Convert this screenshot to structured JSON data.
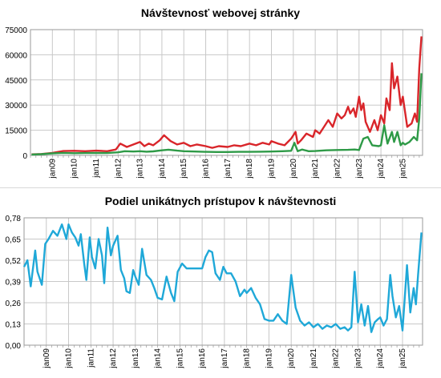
{
  "chart_data": [
    {
      "type": "line",
      "title": "Návštevnosť webovej stránky",
      "ylim": [
        0,
        75000
      ],
      "y_ticks": [
        "75000",
        "60000",
        "45000",
        "30000",
        "15000",
        "0"
      ],
      "x_ticks": [
        "jan09",
        "jan10",
        "jan11",
        "jan12",
        "jan13",
        "jan14",
        "jan15",
        "jan16",
        "jan17",
        "jan18",
        "jan19",
        "jan20",
        "jan21",
        "jan22",
        "jan23",
        "jan24",
        "jan25"
      ],
      "xlim": [
        2008.0,
        2025.9
      ],
      "grid": true,
      "series": [
        {
          "color": "#d9252a",
          "x": [
            2008.05,
            2008.5,
            2009.0,
            2009.5,
            2010.0,
            2010.5,
            2011.0,
            2011.5,
            2011.9,
            2012.1,
            2012.4,
            2012.7,
            2013.0,
            2013.2,
            2013.4,
            2013.6,
            2013.9,
            2014.1,
            2014.4,
            2014.7,
            2015.0,
            2015.3,
            2015.6,
            2016.0,
            2016.3,
            2016.6,
            2017.0,
            2017.3,
            2017.6,
            2018.0,
            2018.3,
            2018.6,
            2018.9,
            2019.0,
            2019.3,
            2019.6,
            2019.9,
            2020.1,
            2020.2,
            2020.35,
            2020.6,
            2020.9,
            2021.0,
            2021.2,
            2021.4,
            2021.6,
            2021.8,
            2022.0,
            2022.2,
            2022.35,
            2022.5,
            2022.6,
            2022.75,
            2022.85,
            2023.0,
            2023.1,
            2023.2,
            2023.3,
            2023.5,
            2023.7,
            2023.85,
            2024.0,
            2024.15,
            2024.25,
            2024.4,
            2024.5,
            2024.6,
            2024.75,
            2024.9,
            2025.0,
            2025.2,
            2025.4,
            2025.55,
            2025.65,
            2025.75,
            2025.85
          ],
          "values": [
            600,
            800,
            1500,
            2600,
            2700,
            2500,
            2800,
            2500,
            3500,
            7000,
            5000,
            6500,
            8000,
            5500,
            7000,
            6000,
            9000,
            12000,
            8500,
            6500,
            7500,
            5500,
            6500,
            5500,
            4500,
            5500,
            5000,
            6000,
            5500,
            7000,
            6000,
            7500,
            6500,
            8500,
            7000,
            6000,
            10000,
            14000,
            7000,
            9000,
            13000,
            11000,
            15000,
            13000,
            17000,
            21000,
            17000,
            25000,
            22000,
            24000,
            29000,
            25000,
            28000,
            23000,
            35000,
            27000,
            31000,
            20000,
            14000,
            21000,
            15000,
            24000,
            19000,
            34000,
            27000,
            55000,
            40000,
            47000,
            30000,
            35000,
            17000,
            19000,
            25000,
            20000,
            52000,
            71000
          ]
        },
        {
          "color": "#2e9a47",
          "x": [
            2008.05,
            2008.5,
            2009.0,
            2009.5,
            2010.0,
            2010.5,
            2011.0,
            2011.5,
            2012.0,
            2012.3,
            2012.7,
            2013.0,
            2013.3,
            2013.6,
            2014.0,
            2014.3,
            2014.7,
            2015.0,
            2015.5,
            2016.0,
            2016.5,
            2017.0,
            2017.5,
            2018.0,
            2018.5,
            2019.0,
            2019.5,
            2019.9,
            2020.05,
            2020.2,
            2020.4,
            2020.7,
            2021.0,
            2021.5,
            2022.0,
            2022.5,
            2022.8,
            2023.0,
            2023.2,
            2023.4,
            2023.6,
            2023.9,
            2024.0,
            2024.15,
            2024.3,
            2024.5,
            2024.6,
            2024.75,
            2024.9,
            2025.0,
            2025.1,
            2025.3,
            2025.5,
            2025.65,
            2025.75,
            2025.85
          ],
          "values": [
            500,
            700,
            1200,
            1500,
            1300,
            1400,
            1500,
            1400,
            1800,
            2500,
            2300,
            2500,
            2200,
            2400,
            3000,
            3400,
            2800,
            2500,
            2300,
            2100,
            2000,
            2000,
            2100,
            2100,
            2200,
            2300,
            2500,
            2700,
            7500,
            2500,
            3500,
            2500,
            2600,
            3000,
            3200,
            3300,
            3500,
            3200,
            10000,
            11000,
            6000,
            5500,
            6000,
            18000,
            7000,
            14000,
            8000,
            14000,
            6000,
            7500,
            6500,
            8000,
            11000,
            9000,
            22000,
            49000
          ]
        }
      ]
    },
    {
      "type": "line",
      "title": "Podiel unikátnych prístupov k návštevnosti",
      "ylim": [
        0,
        0.78
      ],
      "y_ticks": [
        "0,78",
        "0,65",
        "0,52",
        "0,39",
        "0,26",
        "0,13",
        "0,00"
      ],
      "x_ticks": [
        "jan09",
        "jan10",
        "jan11",
        "jan12",
        "jan13",
        "jan14",
        "jan15",
        "jan16",
        "jan17",
        "jan18",
        "jan19",
        "jan20",
        "jan21",
        "jan22",
        "jan23",
        "jan24",
        "jan25"
      ],
      "xlim": [
        2008.0,
        2025.9
      ],
      "grid": true,
      "series": [
        {
          "color": "#1fa8d8",
          "x": [
            2008.0,
            2008.15,
            2008.3,
            2008.5,
            2008.6,
            2008.8,
            2008.95,
            2009.1,
            2009.3,
            2009.5,
            2009.7,
            2009.9,
            2010.0,
            2010.15,
            2010.3,
            2010.45,
            2010.55,
            2010.7,
            2010.8,
            2010.95,
            2011.05,
            2011.2,
            2011.35,
            2011.5,
            2011.6,
            2011.75,
            2011.9,
            2012.0,
            2012.2,
            2012.35,
            2012.5,
            2012.6,
            2012.75,
            2012.9,
            2013.0,
            2013.15,
            2013.3,
            2013.5,
            2013.7,
            2013.85,
            2014.0,
            2014.2,
            2014.4,
            2014.6,
            2014.75,
            2014.9,
            2015.1,
            2015.3,
            2015.5,
            2015.7,
            2015.9,
            2016.0,
            2016.15,
            2016.3,
            2016.45,
            2016.6,
            2016.8,
            2016.95,
            2017.1,
            2017.3,
            2017.5,
            2017.7,
            2017.9,
            2018.0,
            2018.2,
            2018.4,
            2018.6,
            2018.8,
            2019.0,
            2019.2,
            2019.4,
            2019.6,
            2019.8,
            2020.0,
            2020.2,
            2020.4,
            2020.6,
            2020.8,
            2021.0,
            2021.2,
            2021.4,
            2021.6,
            2021.8,
            2022.0,
            2022.2,
            2022.4,
            2022.55,
            2022.7,
            2022.85,
            2023.0,
            2023.15,
            2023.3,
            2023.45,
            2023.6,
            2023.75,
            2023.9,
            2024.0,
            2024.15,
            2024.3,
            2024.45,
            2024.55,
            2024.7,
            2024.85,
            2025.0,
            2025.2,
            2025.35,
            2025.5,
            2025.6,
            2025.7,
            2025.85
          ],
          "values": [
            0.48,
            0.52,
            0.36,
            0.58,
            0.45,
            0.37,
            0.62,
            0.65,
            0.7,
            0.67,
            0.74,
            0.65,
            0.74,
            0.69,
            0.66,
            0.61,
            0.68,
            0.5,
            0.4,
            0.66,
            0.54,
            0.47,
            0.65,
            0.55,
            0.38,
            0.72,
            0.55,
            0.61,
            0.67,
            0.46,
            0.41,
            0.33,
            0.32,
            0.46,
            0.42,
            0.37,
            0.59,
            0.43,
            0.4,
            0.35,
            0.29,
            0.28,
            0.42,
            0.32,
            0.27,
            0.45,
            0.5,
            0.47,
            0.47,
            0.47,
            0.47,
            0.47,
            0.54,
            0.58,
            0.57,
            0.44,
            0.4,
            0.48,
            0.44,
            0.44,
            0.39,
            0.3,
            0.34,
            0.32,
            0.35,
            0.29,
            0.25,
            0.16,
            0.15,
            0.15,
            0.19,
            0.15,
            0.13,
            0.43,
            0.23,
            0.15,
            0.12,
            0.14,
            0.11,
            0.13,
            0.1,
            0.12,
            0.11,
            0.13,
            0.1,
            0.11,
            0.09,
            0.11,
            0.45,
            0.14,
            0.25,
            0.12,
            0.24,
            0.08,
            0.14,
            0.16,
            0.17,
            0.12,
            0.16,
            0.43,
            0.3,
            0.17,
            0.24,
            0.09,
            0.49,
            0.2,
            0.35,
            0.25,
            0.43,
            0.69
          ]
        }
      ]
    }
  ]
}
